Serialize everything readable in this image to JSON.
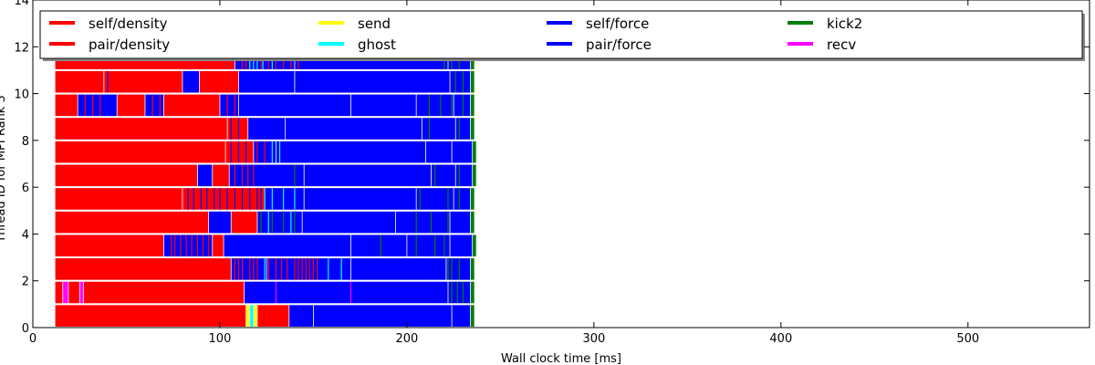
{
  "chart_data": {
    "type": "bar",
    "orientation": "horizontal",
    "stacked": true,
    "xlabel": "Wall clock time [ms]",
    "ylabel": "Thread ID for MPI Rank 3",
    "xlim": [
      0,
      565
    ],
    "ylim": [
      0,
      14
    ],
    "xticks": [
      0,
      100,
      200,
      300,
      400,
      500
    ],
    "yticks": [
      0,
      2,
      4,
      6,
      8,
      10,
      12,
      14
    ],
    "grid": false,
    "legend_placement": "top",
    "legend_entries": [
      {
        "name": "self/density",
        "color": "#ff0000"
      },
      {
        "name": "pair/density",
        "color": "#ff0000"
      },
      {
        "name": "send",
        "color": "#ffff00"
      },
      {
        "name": "ghost",
        "color": "#00ffff"
      },
      {
        "name": "self/force",
        "color": "#0000ff"
      },
      {
        "name": "pair/force",
        "color": "#0000ff"
      },
      {
        "name": "kick2",
        "color": "#008000"
      },
      {
        "name": "recv",
        "color": "#ff00ff"
      }
    ],
    "colors": {
      "r": "#ff0000",
      "b": "#0000ff",
      "g": "#008000",
      "c": "#00ffff",
      "y": "#ffff00",
      "m": "#ff00ff"
    },
    "threads": [
      {
        "thread": 0,
        "segments": [
          [
            12,
            114,
            "r"
          ],
          [
            114,
            116,
            "y"
          ],
          [
            116,
            118,
            "c"
          ],
          [
            118,
            120,
            "y"
          ],
          [
            120,
            137,
            "r"
          ],
          [
            137,
            150,
            "b"
          ],
          [
            150,
            224,
            "b"
          ],
          [
            224,
            234,
            "b"
          ],
          [
            234,
            236,
            "g"
          ]
        ]
      },
      {
        "thread": 1,
        "segments": [
          [
            12,
            16,
            "r"
          ],
          [
            16,
            19,
            "m"
          ],
          [
            19,
            25,
            "r"
          ],
          [
            25,
            27,
            "m"
          ],
          [
            27,
            113,
            "r"
          ],
          [
            113,
            130,
            "b"
          ],
          [
            130,
            170,
            "b"
          ],
          [
            170,
            222,
            "b"
          ],
          [
            222,
            234,
            "b"
          ],
          [
            234,
            236,
            "g"
          ]
        ]
      },
      {
        "thread": 2,
        "segments": [
          [
            12,
            106,
            "r"
          ],
          [
            106,
            125,
            "b"
          ],
          [
            125,
            150,
            "b"
          ],
          [
            150,
            170,
            "b"
          ],
          [
            170,
            221,
            "b"
          ],
          [
            221,
            234,
            "b"
          ],
          [
            234,
            236,
            "g"
          ]
        ]
      },
      {
        "thread": 3,
        "segments": [
          [
            12,
            70,
            "r"
          ],
          [
            70,
            96,
            "b"
          ],
          [
            96,
            102,
            "r"
          ],
          [
            102,
            170,
            "b"
          ],
          [
            170,
            200,
            "b"
          ],
          [
            200,
            223,
            "b"
          ],
          [
            223,
            235,
            "b"
          ],
          [
            235,
            237,
            "g"
          ]
        ]
      },
      {
        "thread": 4,
        "segments": [
          [
            12,
            94,
            "r"
          ],
          [
            94,
            106,
            "b"
          ],
          [
            106,
            120,
            "r"
          ],
          [
            120,
            144,
            "b"
          ],
          [
            144,
            194,
            "b"
          ],
          [
            194,
            223,
            "b"
          ],
          [
            223,
            234,
            "b"
          ],
          [
            234,
            236,
            "g"
          ]
        ]
      },
      {
        "thread": 5,
        "segments": [
          [
            12,
            80,
            "r"
          ],
          [
            80,
            124,
            "r"
          ],
          [
            124,
            145,
            "b"
          ],
          [
            145,
            205,
            "b"
          ],
          [
            205,
            225,
            "b"
          ],
          [
            225,
            234,
            "b"
          ],
          [
            234,
            236,
            "g"
          ]
        ]
      },
      {
        "thread": 6,
        "segments": [
          [
            12,
            88,
            "r"
          ],
          [
            88,
            96,
            "b"
          ],
          [
            96,
            105,
            "r"
          ],
          [
            105,
            145,
            "b"
          ],
          [
            145,
            213,
            "b"
          ],
          [
            213,
            226,
            "b"
          ],
          [
            226,
            235,
            "b"
          ],
          [
            235,
            237,
            "g"
          ]
        ]
      },
      {
        "thread": 7,
        "segments": [
          [
            12,
            103,
            "r"
          ],
          [
            103,
            118,
            "r"
          ],
          [
            118,
            130,
            "b"
          ],
          [
            130,
            210,
            "b"
          ],
          [
            210,
            224,
            "b"
          ],
          [
            224,
            235,
            "b"
          ],
          [
            235,
            237,
            "g"
          ]
        ]
      },
      {
        "thread": 8,
        "segments": [
          [
            12,
            104,
            "r"
          ],
          [
            104,
            115,
            "r"
          ],
          [
            115,
            135,
            "b"
          ],
          [
            135,
            208,
            "b"
          ],
          [
            208,
            226,
            "b"
          ],
          [
            226,
            234,
            "b"
          ],
          [
            234,
            236,
            "g"
          ]
        ]
      },
      {
        "thread": 9,
        "segments": [
          [
            12,
            24,
            "r"
          ],
          [
            24,
            45,
            "b"
          ],
          [
            45,
            60,
            "r"
          ],
          [
            60,
            70,
            "b"
          ],
          [
            70,
            100,
            "r"
          ],
          [
            100,
            110,
            "b"
          ],
          [
            110,
            170,
            "b"
          ],
          [
            170,
            205,
            "b"
          ],
          [
            205,
            225,
            "b"
          ],
          [
            225,
            234,
            "b"
          ],
          [
            234,
            236,
            "g"
          ]
        ]
      },
      {
        "thread": 10,
        "segments": [
          [
            12,
            38,
            "r"
          ],
          [
            38,
            80,
            "r"
          ],
          [
            80,
            89,
            "b"
          ],
          [
            89,
            110,
            "r"
          ],
          [
            110,
            140,
            "b"
          ],
          [
            140,
            223,
            "b"
          ],
          [
            223,
            234,
            "b"
          ],
          [
            234,
            236,
            "g"
          ]
        ]
      },
      {
        "thread": 11,
        "segments": [
          [
            12,
            108,
            "r"
          ],
          [
            108,
            120,
            "b"
          ],
          [
            120,
            140,
            "b"
          ],
          [
            140,
            222,
            "b"
          ],
          [
            222,
            234,
            "b"
          ],
          [
            234,
            236,
            "g"
          ]
        ]
      }
    ],
    "event_ticks": [
      {
        "thread": 0,
        "color": "b",
        "x": [
          138,
          140,
          143,
          145,
          147
        ]
      },
      {
        "thread": 1,
        "color": "b",
        "x": [
          114,
          116,
          118,
          120,
          122,
          124,
          126,
          128,
          132,
          135,
          140,
          175
        ]
      },
      {
        "thread": 1,
        "color": "m",
        "x": [
          130,
          170
        ]
      },
      {
        "thread": 1,
        "color": "g",
        "x": [
          224,
          227,
          230
        ]
      },
      {
        "thread": 2,
        "color": "r",
        "x": [
          108,
          110,
          112,
          116,
          118,
          120,
          126,
          130,
          133,
          136,
          140,
          142,
          144,
          146,
          148,
          150,
          152
        ]
      },
      {
        "thread": 2,
        "color": "c",
        "x": [
          124,
          158,
          165
        ]
      },
      {
        "thread": 2,
        "color": "g",
        "x": [
          222,
          224,
          228
        ]
      },
      {
        "thread": 3,
        "color": "r",
        "x": [
          74,
          76,
          79,
          82,
          85,
          88,
          91,
          94,
          97,
          99
        ]
      },
      {
        "thread": 3,
        "color": "g",
        "x": [
          186,
          205,
          215,
          220
        ]
      },
      {
        "thread": 4,
        "color": "b",
        "x": [
          100,
          103
        ]
      },
      {
        "thread": 4,
        "color": "g",
        "x": [
          122,
          128,
          134,
          140,
          205,
          213,
          222
        ]
      },
      {
        "thread": 4,
        "color": "c",
        "x": [
          126,
          138
        ]
      },
      {
        "thread": 5,
        "color": "b",
        "x": [
          83,
          86,
          90,
          93,
          97,
          100,
          104,
          108,
          112,
          116,
          120,
          122
        ]
      },
      {
        "thread": 5,
        "color": "c",
        "x": [
          124,
          128,
          134,
          140
        ]
      },
      {
        "thread": 5,
        "color": "g",
        "x": [
          207,
          222,
          228
        ]
      },
      {
        "thread": 6,
        "color": "r",
        "x": [
          108,
          112,
          115,
          118
        ]
      },
      {
        "thread": 6,
        "color": "g",
        "x": [
          140,
          215,
          228
        ]
      },
      {
        "thread": 7,
        "color": "b",
        "x": [
          106,
          110,
          114
        ]
      },
      {
        "thread": 7,
        "color": "r",
        "x": [
          120,
          124
        ]
      },
      {
        "thread": 7,
        "color": "c",
        "x": [
          128,
          132
        ]
      },
      {
        "thread": 8,
        "color": "b",
        "x": [
          106,
          110
        ]
      },
      {
        "thread": 8,
        "color": "g",
        "x": [
          212,
          228
        ]
      },
      {
        "thread": 9,
        "color": "r",
        "x": [
          28,
          32,
          36,
          48,
          52,
          56,
          64,
          68,
          104,
          108
        ]
      },
      {
        "thread": 9,
        "color": "g",
        "x": [
          212,
          218,
          224,
          230
        ]
      },
      {
        "thread": 10,
        "color": "b",
        "x": [
          40,
          112,
          116,
          120,
          130,
          134
        ]
      },
      {
        "thread": 10,
        "color": "g",
        "x": [
          226,
          230
        ]
      },
      {
        "thread": 11,
        "color": "r",
        "x": [
          112,
          114,
          116,
          122,
          126,
          130,
          134,
          138,
          142
        ]
      },
      {
        "thread": 11,
        "color": "c",
        "x": [
          116,
          118,
          120,
          123,
          128
        ]
      },
      {
        "thread": 11,
        "color": "g",
        "x": [
          220,
          224,
          228
        ]
      }
    ]
  }
}
